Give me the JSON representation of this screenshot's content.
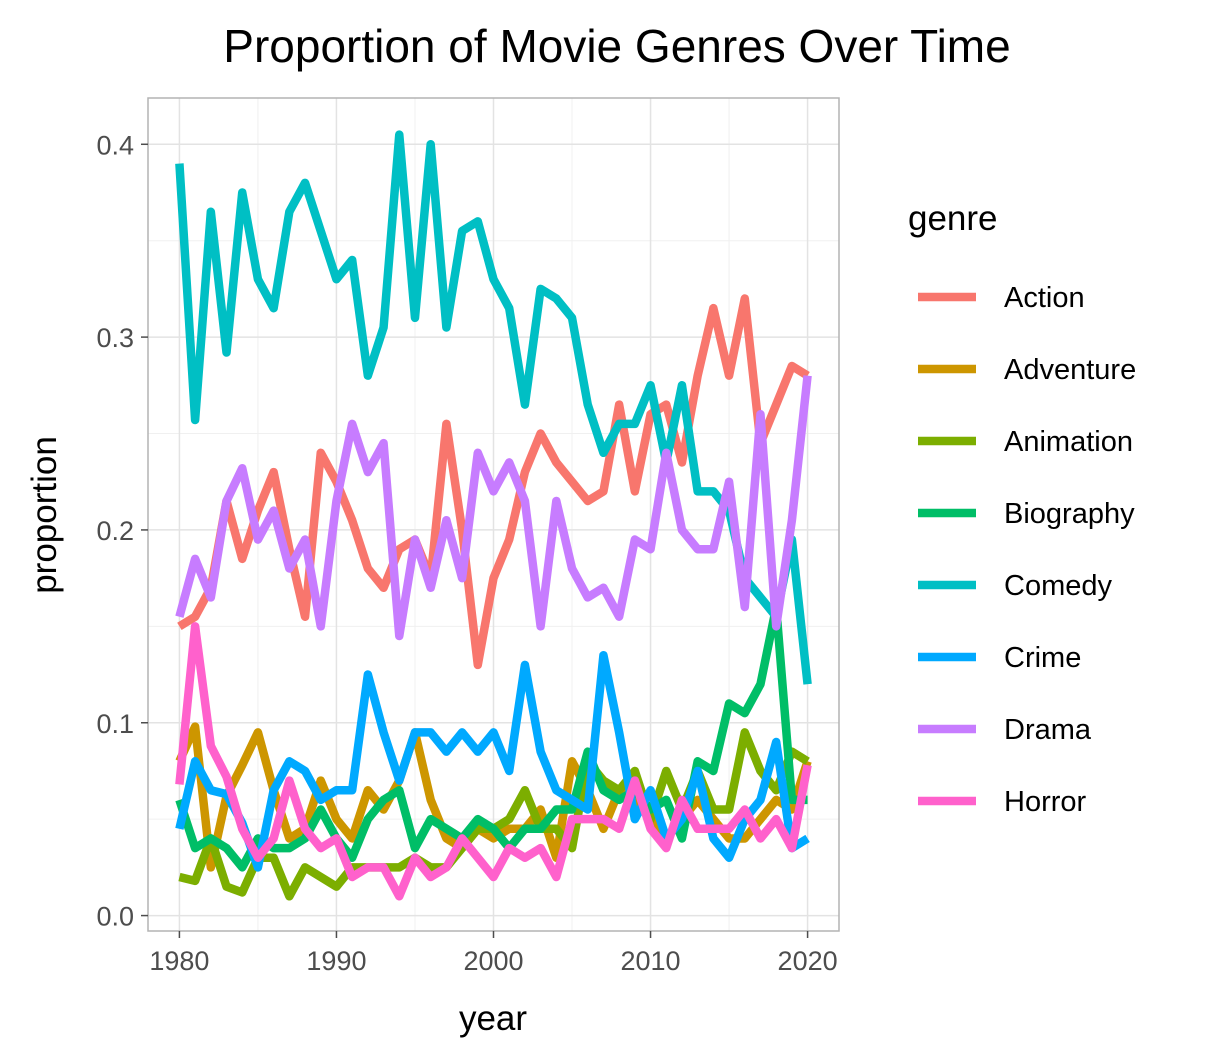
{
  "chart_data": {
    "type": "line",
    "title": "Proportion of Movie Genres Over Time",
    "xlabel": "year",
    "ylabel": "proportion",
    "legend_title": "genre",
    "legend_position": "right",
    "grid": true,
    "xlim": [
      1978,
      2022
    ],
    "ylim": [
      -0.008,
      0.424
    ],
    "x_ticks": [
      1980,
      1990,
      2000,
      2010,
      2020
    ],
    "y_ticks": [
      0.0,
      0.1,
      0.2,
      0.3,
      0.4
    ],
    "x_tick_labels": [
      "1980",
      "1990",
      "2000",
      "2010",
      "2020"
    ],
    "y_tick_labels": [
      "0.0",
      "0.1",
      "0.2",
      "0.3",
      "0.4"
    ],
    "x": [
      1980,
      1981,
      1982,
      1983,
      1984,
      1985,
      1986,
      1987,
      1988,
      1989,
      1990,
      1991,
      1992,
      1993,
      1994,
      1995,
      1996,
      1997,
      1998,
      1999,
      2000,
      2001,
      2002,
      2003,
      2004,
      2005,
      2006,
      2007,
      2008,
      2009,
      2010,
      2011,
      2012,
      2013,
      2014,
      2015,
      2016,
      2017,
      2018,
      2019,
      2020
    ],
    "series": [
      {
        "name": "Action",
        "color": "#F8766D",
        "values": [
          0.15,
          0.155,
          0.17,
          0.215,
          0.185,
          0.21,
          0.23,
          0.19,
          0.155,
          0.24,
          0.225,
          0.205,
          0.18,
          0.17,
          0.19,
          0.195,
          0.175,
          0.255,
          0.2,
          0.13,
          0.175,
          0.195,
          0.23,
          0.25,
          0.235,
          0.225,
          0.215,
          0.22,
          0.265,
          0.22,
          0.26,
          0.265,
          0.235,
          0.28,
          0.315,
          0.28,
          0.32,
          0.245,
          0.265,
          0.285,
          0.28
        ]
      },
      {
        "name": "Adventure",
        "color": "#CD9600",
        "values": [
          0.08,
          0.098,
          0.025,
          0.062,
          0.078,
          0.095,
          0.065,
          0.04,
          0.045,
          0.07,
          0.05,
          0.04,
          0.065,
          0.055,
          0.07,
          0.095,
          0.06,
          0.04,
          0.035,
          0.045,
          0.04,
          0.045,
          0.045,
          0.055,
          0.03,
          0.08,
          0.065,
          0.045,
          0.065,
          0.06,
          0.05,
          0.04,
          0.05,
          0.06,
          0.05,
          0.04,
          0.04,
          0.05,
          0.06,
          0.055,
          0.08
        ]
      },
      {
        "name": "Animation",
        "color": "#7CAE00",
        "values": [
          0.02,
          0.018,
          0.04,
          0.015,
          0.012,
          0.03,
          0.03,
          0.01,
          0.025,
          0.02,
          0.015,
          0.025,
          0.025,
          0.025,
          0.025,
          0.03,
          0.025,
          0.025,
          0.035,
          0.045,
          0.045,
          0.05,
          0.065,
          0.045,
          0.045,
          0.035,
          0.08,
          0.07,
          0.065,
          0.075,
          0.05,
          0.075,
          0.055,
          0.075,
          0.055,
          0.055,
          0.095,
          0.075,
          0.065,
          0.085,
          0.08
        ]
      },
      {
        "name": "Biography",
        "color": "#00BE67",
        "values": [
          0.06,
          0.035,
          0.04,
          0.035,
          0.025,
          0.04,
          0.035,
          0.035,
          0.04,
          0.055,
          0.04,
          0.03,
          0.05,
          0.06,
          0.065,
          0.035,
          0.05,
          0.045,
          0.04,
          0.05,
          0.045,
          0.035,
          0.045,
          0.045,
          0.055,
          0.055,
          0.085,
          0.065,
          0.06,
          0.065,
          0.055,
          0.06,
          0.04,
          0.08,
          0.075,
          0.11,
          0.105,
          0.12,
          0.16,
          0.06,
          0.06
        ]
      },
      {
        "name": "Comedy",
        "color": "#00BFC4",
        "values": [
          0.39,
          0.257,
          0.365,
          0.292,
          0.375,
          0.33,
          0.315,
          0.365,
          0.38,
          0.355,
          0.33,
          0.34,
          0.28,
          0.305,
          0.405,
          0.31,
          0.4,
          0.305,
          0.355,
          0.36,
          0.33,
          0.315,
          0.265,
          0.325,
          0.32,
          0.31,
          0.265,
          0.24,
          0.255,
          0.255,
          0.275,
          0.235,
          0.275,
          0.22,
          0.22,
          0.21,
          0.175,
          0.165,
          0.155,
          0.195,
          0.12
        ]
      },
      {
        "name": "Crime",
        "color": "#00A9FF",
        "values": [
          0.045,
          0.08,
          0.065,
          0.063,
          0.048,
          0.025,
          0.065,
          0.08,
          0.075,
          0.06,
          0.065,
          0.065,
          0.125,
          0.095,
          0.07,
          0.095,
          0.095,
          0.085,
          0.095,
          0.085,
          0.095,
          0.075,
          0.13,
          0.085,
          0.065,
          0.06,
          0.055,
          0.135,
          0.095,
          0.05,
          0.065,
          0.04,
          0.05,
          0.075,
          0.04,
          0.03,
          0.05,
          0.06,
          0.09,
          0.035,
          0.04
        ]
      },
      {
        "name": "Drama",
        "color": "#C77CFF",
        "values": [
          0.155,
          0.185,
          0.165,
          0.215,
          0.232,
          0.195,
          0.21,
          0.18,
          0.195,
          0.15,
          0.215,
          0.255,
          0.23,
          0.245,
          0.145,
          0.195,
          0.17,
          0.205,
          0.175,
          0.24,
          0.22,
          0.235,
          0.215,
          0.15,
          0.215,
          0.18,
          0.165,
          0.17,
          0.155,
          0.195,
          0.19,
          0.24,
          0.2,
          0.19,
          0.19,
          0.225,
          0.16,
          0.26,
          0.15,
          0.205,
          0.28
        ]
      },
      {
        "name": "Horror",
        "color": "#FF61CC",
        "values": [
          0.068,
          0.15,
          0.088,
          0.072,
          0.045,
          0.03,
          0.04,
          0.07,
          0.045,
          0.035,
          0.04,
          0.02,
          0.025,
          0.025,
          0.01,
          0.03,
          0.02,
          0.025,
          0.04,
          0.03,
          0.02,
          0.035,
          0.03,
          0.035,
          0.02,
          0.05,
          0.05,
          0.05,
          0.045,
          0.07,
          0.045,
          0.035,
          0.06,
          0.045,
          0.045,
          0.045,
          0.055,
          0.04,
          0.05,
          0.035,
          0.078
        ]
      }
    ]
  }
}
